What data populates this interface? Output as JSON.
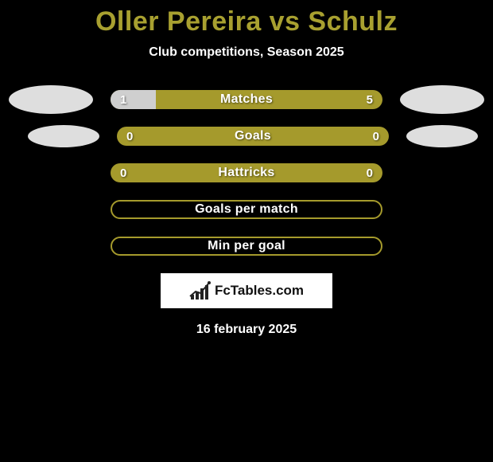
{
  "title": "Oller Pereira vs Schulz",
  "subtitle": "Club competitions, Season 2025",
  "date": "16 february 2025",
  "logo_text": "FcTables.com",
  "colors": {
    "background": "#000000",
    "accent": "#a8a030",
    "bar_fill": "#a59a2c",
    "bar_outline": "#a59a2c",
    "shape_left": "#dedede",
    "shape_right": "#dedede",
    "title": "#a8a030",
    "text": "#ffffff"
  },
  "shapes": {
    "row0_left": true,
    "row0_right": true,
    "row1_left": true,
    "row1_right": true
  },
  "stats": [
    {
      "label": "Matches",
      "left_value": "1",
      "right_value": "5",
      "left_pct": 16.7,
      "right_pct": 83.3,
      "style": "split"
    },
    {
      "label": "Goals",
      "left_value": "0",
      "right_value": "0",
      "left_pct": 0,
      "right_pct": 0,
      "style": "full"
    },
    {
      "label": "Hattricks",
      "left_value": "0",
      "right_value": "0",
      "left_pct": 0,
      "right_pct": 0,
      "style": "full"
    },
    {
      "label": "Goals per match",
      "left_value": "",
      "right_value": "",
      "left_pct": 0,
      "right_pct": 0,
      "style": "outline"
    },
    {
      "label": "Min per goal",
      "left_value": "",
      "right_value": "",
      "left_pct": 0,
      "right_pct": 0,
      "style": "outline"
    }
  ]
}
